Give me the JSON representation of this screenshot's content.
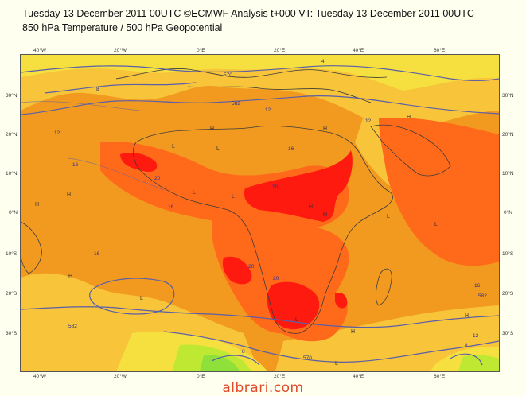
{
  "header": {
    "title": "Tuesday 13 December 2011 00UTC ©ECMWF Analysis t+000 VT: Tuesday 13 December 2011 00UTC",
    "subtitle": "850 hPa Temperature / 500 hPa Geopotential"
  },
  "axes": {
    "top": [
      "40°W",
      "20°W",
      "0°E",
      "20°E",
      "40°E",
      "60°E"
    ],
    "bottom": [
      "40°W",
      "20°W",
      "0°E",
      "20°E",
      "40°E",
      "60°E"
    ],
    "left": [
      "30°N",
      "20°N",
      "10°N",
      "0°N",
      "10°S",
      "20°S",
      "30°S"
    ],
    "right": [
      "30°N",
      "20°N",
      "10°N",
      "0°N",
      "10°S",
      "20°S",
      "30°S"
    ]
  },
  "contour_labels": [
    "570",
    "582",
    "12",
    "12",
    "12",
    "16",
    "16",
    "16",
    "16",
    "16",
    "20",
    "20",
    "20",
    "20",
    "582",
    "570",
    "582",
    "12",
    "8",
    "4",
    "8",
    "8"
  ],
  "markers": [
    "H",
    "H",
    "H",
    "H",
    "H",
    "H",
    "H",
    "H",
    "H",
    "H",
    "L",
    "L",
    "L",
    "L",
    "L",
    "L",
    "L",
    "L",
    "L"
  ],
  "colors": {
    "warm": "#f29a1f",
    "hot": "#ff6a1a",
    "hottest": "#ff1a10",
    "mild": "#f7c43a",
    "cool": "#f5e040",
    "cold": "#bfe832",
    "coldest": "#8fe03a",
    "contour": "#5a5fa8"
  },
  "watermark": "albrari.com"
}
